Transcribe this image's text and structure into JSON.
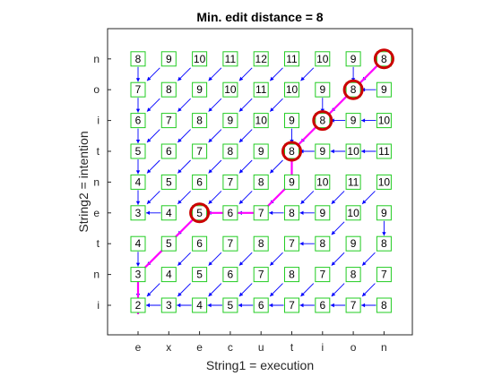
{
  "chart_data": {
    "type": "table",
    "title": "Min. edit distance = 8",
    "xlabel": "String1 = execution",
    "ylabel": "String2 = intention",
    "x_ticks": [
      "e",
      "x",
      "e",
      "c",
      "u",
      "t",
      "i",
      "o",
      "n"
    ],
    "y_ticks": [
      "i",
      "n",
      "t",
      "e",
      "n",
      "t",
      "i",
      "o",
      "n"
    ],
    "matrix": [
      [
        2,
        3,
        4,
        5,
        6,
        7,
        6,
        7,
        8
      ],
      [
        3,
        4,
        5,
        6,
        7,
        8,
        7,
        8,
        7
      ],
      [
        4,
        5,
        6,
        7,
        8,
        7,
        8,
        9,
        8
      ],
      [
        3,
        4,
        5,
        6,
        7,
        8,
        9,
        10,
        9
      ],
      [
        4,
        5,
        6,
        7,
        8,
        9,
        10,
        11,
        10
      ],
      [
        5,
        6,
        7,
        8,
        9,
        8,
        9,
        10,
        11
      ],
      [
        6,
        7,
        8,
        9,
        10,
        9,
        8,
        9,
        10
      ],
      [
        7,
        8,
        9,
        10,
        11,
        10,
        9,
        8,
        9
      ],
      [
        8,
        9,
        10,
        11,
        12,
        11,
        10,
        9,
        8
      ]
    ],
    "backtrace": [
      [
        "up",
        "left",
        "left",
        "left",
        "left",
        "left",
        "left",
        "left",
        "left"
      ],
      [
        "up",
        "diag",
        "diag",
        "diag",
        "diag",
        "diag",
        "diag",
        "diag",
        "diag"
      ],
      [
        "up",
        "diag",
        "diag",
        "diag",
        "diag",
        "diag",
        "left",
        "diag",
        "diag"
      ],
      [
        "diag",
        "left",
        "diag",
        "left",
        "left",
        "left",
        "left",
        "diag",
        "up"
      ],
      [
        "up",
        "diag",
        "diag",
        "diag",
        "diag",
        "diag",
        "diag",
        "diag",
        "diag"
      ],
      [
        "up",
        "diag",
        "diag",
        "diag",
        "diag",
        "diag",
        "left",
        "left",
        "left"
      ],
      [
        "up",
        "diag",
        "diag",
        "diag",
        "diag",
        "up",
        "diag",
        "left",
        "left"
      ],
      [
        "up",
        "diag",
        "diag",
        "diag",
        "diag",
        "diag",
        "up",
        "diag",
        "left"
      ],
      [
        "up",
        "diag",
        "diag",
        "diag",
        "diag",
        "diag",
        "diag",
        "up",
        "diag"
      ]
    ],
    "optimal_path": [
      [
        1,
        0
      ],
      [
        2,
        1
      ],
      [
        3,
        2
      ],
      [
        3,
        3
      ],
      [
        3,
        4
      ],
      [
        4,
        5
      ],
      [
        5,
        5
      ],
      [
        6,
        6
      ],
      [
        7,
        7
      ],
      [
        8,
        8
      ]
    ],
    "circled_cells": [
      [
        3,
        2
      ],
      [
        5,
        5
      ],
      [
        6,
        6
      ],
      [
        7,
        7
      ],
      [
        8,
        8
      ]
    ],
    "grid": false,
    "colors": {
      "box": "#22cc22",
      "arrow": "#0000ff",
      "path": "#ff00ff",
      "circle": "#cc0000"
    }
  }
}
